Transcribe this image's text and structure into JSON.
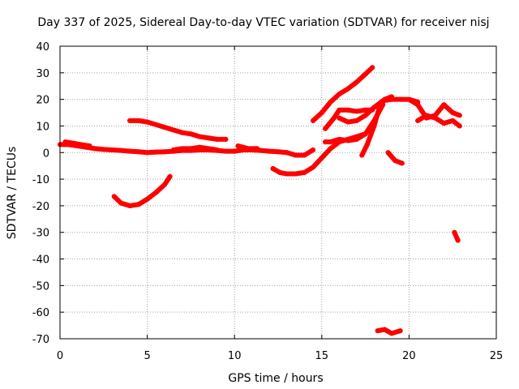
{
  "chart_data": {
    "type": "scatter",
    "title": "Day 337 of 2025, Sidereal Day-to-day VTEC variation (SDTVAR) for receiver nisj",
    "xlabel": "GPS time / hours",
    "ylabel": "SDTVAR / TECUs",
    "xlim": [
      0,
      25
    ],
    "ylim": [
      -70,
      40
    ],
    "x_ticks": [
      "0",
      "5",
      "10",
      "15",
      "20",
      "25"
    ],
    "y_ticks": [
      "-70",
      "-60",
      "-50",
      "-40",
      "-30",
      "-20",
      "-10",
      "0",
      "10",
      "20",
      "30",
      "40"
    ],
    "grid": true,
    "series_color": "#ff0000",
    "series": [
      {
        "x": [
          0.0,
          0.5,
          1,
          1.5,
          2,
          2.5,
          3,
          3.5,
          4,
          4.5,
          5,
          5.5,
          6,
          6.5,
          7,
          7.5,
          8,
          8.5,
          9,
          9.5,
          10,
          10.5,
          11,
          11.5,
          12,
          12.5,
          13,
          13.5,
          14,
          14.5
        ],
        "y": [
          3,
          3,
          2.5,
          2,
          1.5,
          1.2,
          1,
          0.8,
          0.5,
          0.3,
          0,
          0.2,
          0.3,
          0.5,
          0.8,
          0.8,
          1,
          1,
          0.8,
          0.5,
          0.5,
          1,
          1,
          0.8,
          0.5,
          0.3,
          0,
          -1,
          -1,
          1
        ]
      },
      {
        "x": [
          0.3,
          0.8,
          1.2,
          1.7
        ],
        "y": [
          4,
          3.5,
          3,
          2.5
        ]
      },
      {
        "x": [
          4.0,
          4.5,
          5,
          5.5,
          6,
          6.5,
          7,
          7.5,
          8,
          8.5,
          9,
          9.5
        ],
        "y": [
          12,
          12,
          11.5,
          10.5,
          9.5,
          8.5,
          7.5,
          7,
          6,
          5.5,
          5,
          5
        ]
      },
      {
        "x": [
          6.5,
          7,
          7.5,
          8,
          8.5,
          9
        ],
        "y": [
          1,
          1.5,
          1.5,
          2,
          1.5,
          1
        ]
      },
      {
        "x": [
          3.1,
          3.5,
          4,
          4.5,
          5,
          5.5,
          6,
          6.3
        ],
        "y": [
          -16.5,
          -19,
          -20,
          -19.5,
          -17.5,
          -15,
          -12,
          -9
        ]
      },
      {
        "x": [
          10.2,
          10.8,
          11.3
        ],
        "y": [
          2.5,
          1.5,
          1.5
        ]
      },
      {
        "x": [
          12.2,
          12.6,
          13,
          13.5,
          14,
          14.5,
          15,
          15.5,
          16,
          16.5,
          17,
          17.5
        ],
        "y": [
          -6,
          -7.5,
          -8,
          -8,
          -7.5,
          -5.5,
          -2,
          1.5,
          4,
          5,
          6,
          7
        ]
      },
      {
        "x": [
          14.5,
          15,
          15.5,
          16,
          16.5,
          17,
          17.5,
          17.9
        ],
        "y": [
          12,
          15,
          19,
          22,
          24,
          26.5,
          29.5,
          32
        ]
      },
      {
        "x": [
          15.2,
          15.7,
          16,
          16.5,
          17,
          17.5,
          17.9
        ],
        "y": [
          9,
          13,
          16,
          16,
          15.5,
          16,
          16
        ]
      },
      {
        "x": [
          15.2,
          15.5,
          16,
          16.5,
          17,
          17.5,
          18,
          18.5
        ],
        "y": [
          4,
          4,
          5,
          4.5,
          5,
          7,
          12,
          18
        ]
      },
      {
        "x": [
          16,
          16.5,
          17,
          17.5,
          18,
          18.5,
          19,
          19.5,
          20,
          20.5
        ],
        "y": [
          13,
          11.5,
          12,
          14,
          17,
          19.5,
          20,
          20,
          20,
          19
        ]
      },
      {
        "x": [
          17.3,
          17.6,
          18,
          18.3,
          18.6,
          19
        ],
        "y": [
          -1,
          3,
          10,
          17,
          20,
          21
        ]
      },
      {
        "x": [
          20,
          20.5,
          21,
          21.5,
          22,
          22.5,
          22.9
        ],
        "y": [
          20,
          18,
          13,
          14,
          18,
          15,
          14
        ]
      },
      {
        "x": [
          20.5,
          21,
          21.5,
          22,
          22.5,
          22.9
        ],
        "y": [
          12,
          14,
          13,
          11,
          12,
          10
        ]
      },
      {
        "x": [
          18.8,
          19.2,
          19.6
        ],
        "y": [
          0,
          -3,
          -4
        ]
      },
      {
        "x": [
          22.6,
          22.8
        ],
        "y": [
          -30,
          -33
        ]
      },
      {
        "x": [
          18.2,
          18.6,
          19,
          19.5
        ],
        "y": [
          -67,
          -66.5,
          -68,
          -67
        ]
      }
    ]
  }
}
